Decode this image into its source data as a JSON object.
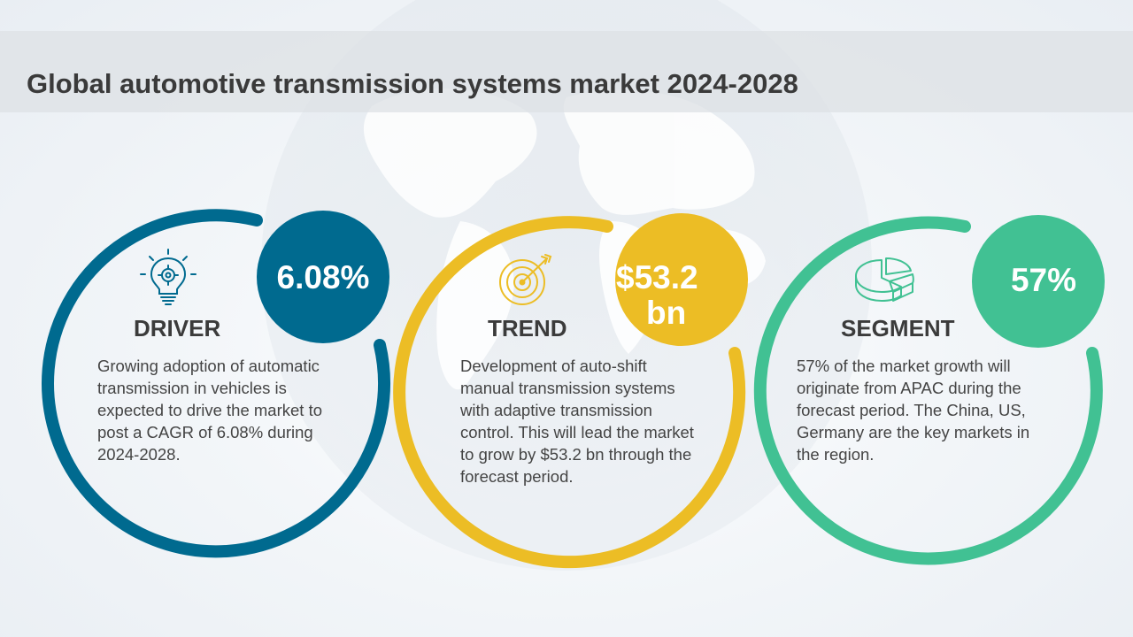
{
  "title": "Global automotive transmission systems market 2024-2028",
  "colors": {
    "driver": "#006a8f",
    "trend": "#ecbd25",
    "segment": "#41c193"
  },
  "cards": [
    {
      "heading": "DRIVER",
      "stat": "6.08%",
      "icon": "lightbulb-gear-icon",
      "text": "Growing adoption of automatic transmission in vehicles is expected to drive the market to post a CAGR of 6.08% during 2024-2028."
    },
    {
      "heading": "TREND",
      "stat_line1": "$53.2",
      "stat_line2": "bn",
      "icon": "target-arrow-icon",
      "text": "Development of auto-shift manual transmission systems with adaptive transmission control. This will lead the market to grow by $53.2 bn through the forecast period."
    },
    {
      "heading": "SEGMENT",
      "stat": "57%",
      "icon": "pie-chart-icon",
      "text": "57% of the market growth will originate from APAC during the forecast period. The China, US, Germany are the key markets in the region."
    }
  ]
}
